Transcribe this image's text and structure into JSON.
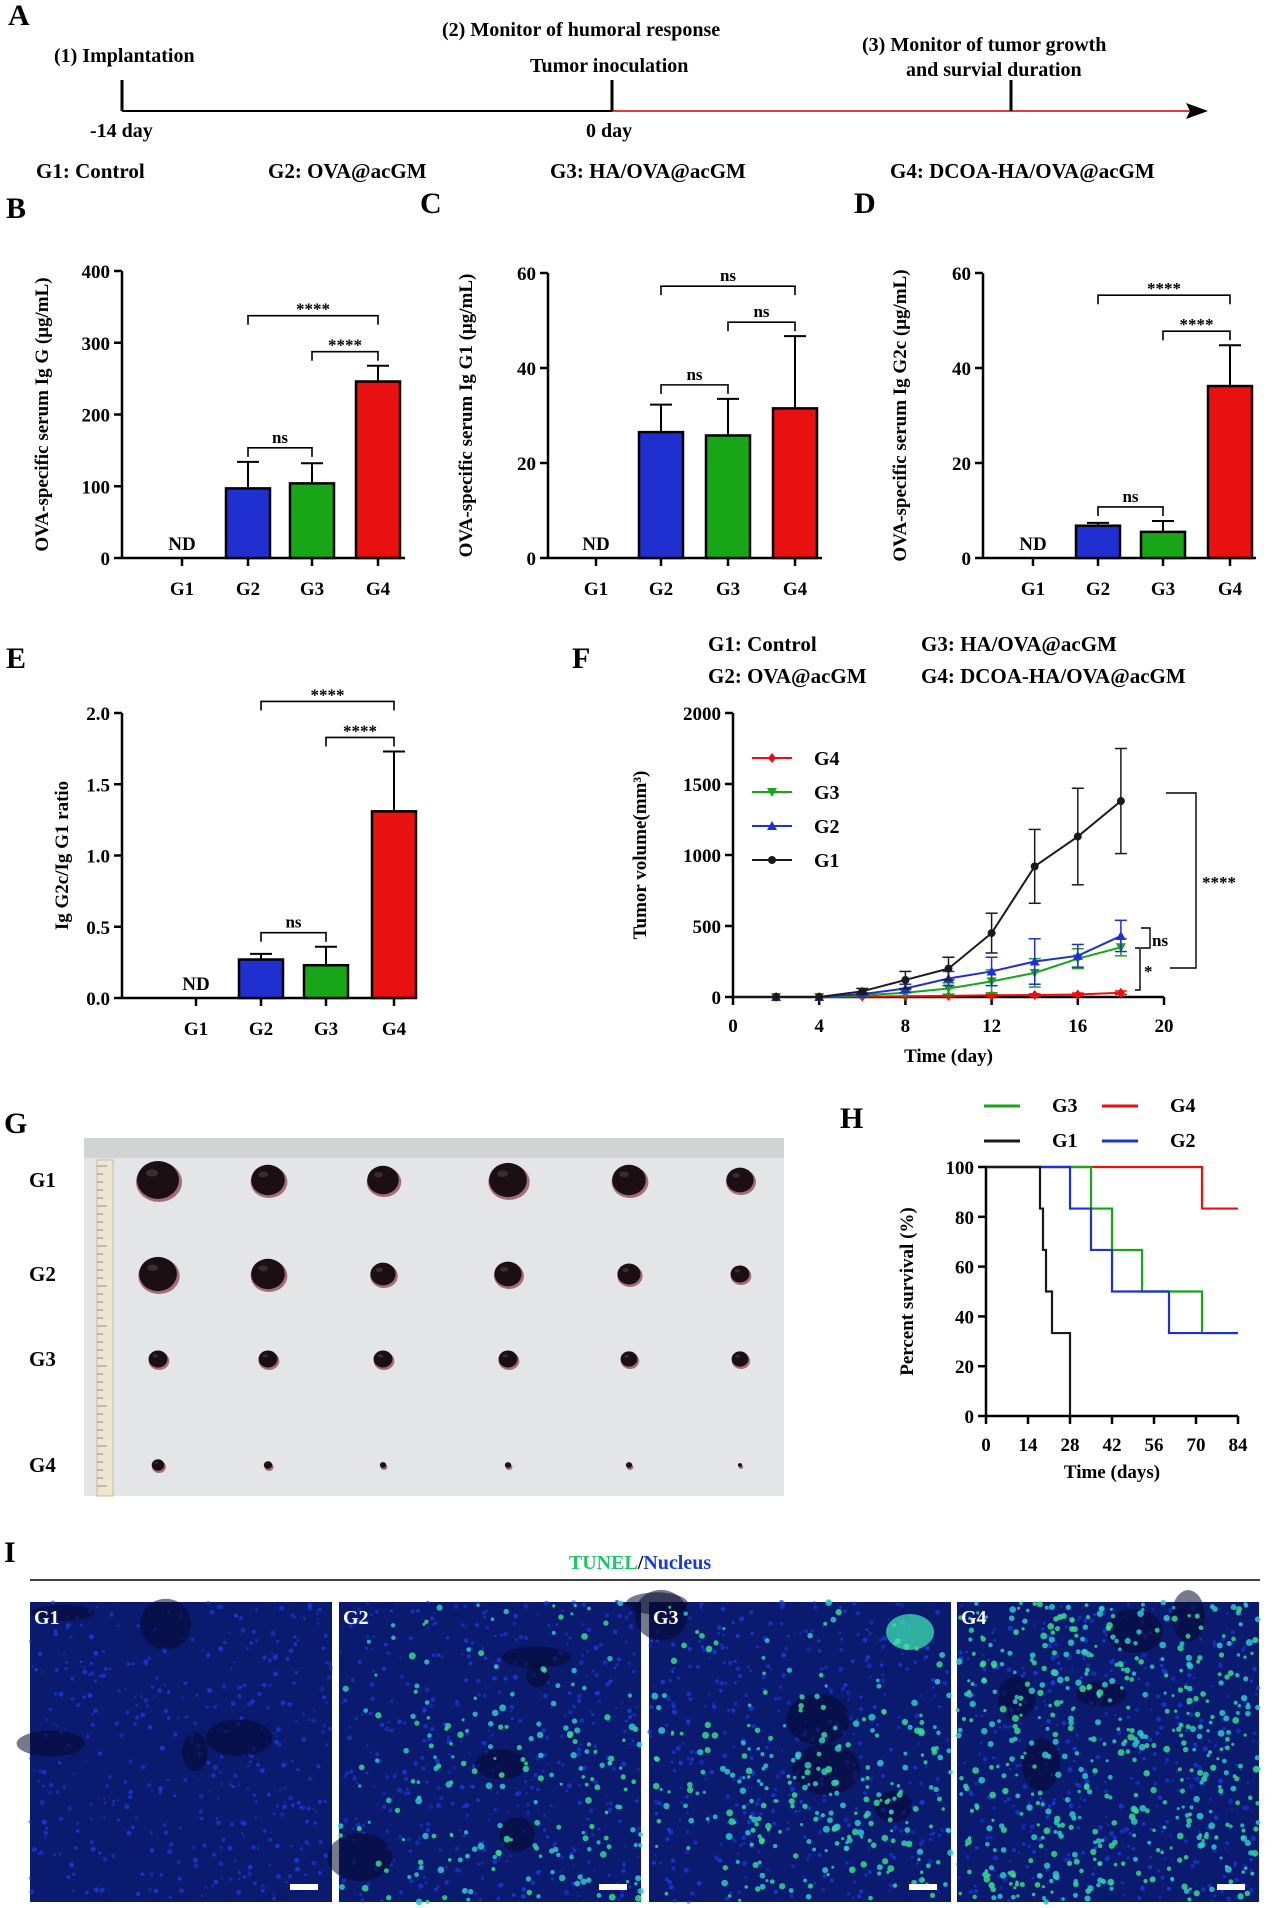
{
  "colors": {
    "G1": "#1a1a1a",
    "G2": "#1f2fd0",
    "G3": "#18a518",
    "G4": "#e81010",
    "tunel": "#22c46a",
    "nucleus": "#1a3adf",
    "timeline_red": "#e33b3b"
  },
  "panel_labels": {
    "A": "A",
    "B": "B",
    "C": "C",
    "D": "D",
    "E": "E",
    "F": "F",
    "G": "G",
    "H": "H",
    "I": "I"
  },
  "timeline": {
    "step1": "(1) Implantation",
    "step2": "(2) Monitor of humoral response",
    "step2b": "Tumor inoculation",
    "step3_line1": "(3) Monitor of tumor growth",
    "step3_line2": "and survial duration",
    "t1": "-14 day",
    "t2": "0 day",
    "groups": [
      "G1: Control",
      "G2: OVA@acGM",
      "G3: HA/OVA@acGM",
      "G4: DCOA-HA/OVA@acGM"
    ]
  },
  "chart_data": [
    {
      "id": "B",
      "type": "bar",
      "categories": [
        "G1",
        "G2",
        "G3",
        "G4"
      ],
      "values": [
        0,
        97,
        104,
        246
      ],
      "errors": [
        0,
        37,
        28,
        22
      ],
      "ylim": [
        0,
        400
      ],
      "yticks": [
        "0",
        "100",
        "200",
        "300",
        "400"
      ],
      "ylabel": "OVA-specific serum Ig G (μg/mL)",
      "nd_label": "ND",
      "significance": [
        {
          "from": "G2",
          "to": "G4",
          "label": "****"
        },
        {
          "from": "G3",
          "to": "G4",
          "label": "****"
        },
        {
          "from": "G2",
          "to": "G3",
          "label": "ns"
        }
      ]
    },
    {
      "id": "C",
      "type": "bar",
      "categories": [
        "G1",
        "G2",
        "G3",
        "G4"
      ],
      "values": [
        0,
        26.5,
        25.8,
        31.5
      ],
      "errors": [
        0,
        5.8,
        7.7,
        15.2
      ],
      "ylim": [
        0,
        60
      ],
      "yticks": [
        "0",
        "20",
        "40",
        "60"
      ],
      "ylabel": "OVA-specific serum Ig G1 (μg/mL)",
      "nd_label": "ND",
      "significance": [
        {
          "from": "G2",
          "to": "G4",
          "label": "ns"
        },
        {
          "from": "G3",
          "to": "G4",
          "label": "ns"
        },
        {
          "from": "G2",
          "to": "G3",
          "label": "ns"
        }
      ]
    },
    {
      "id": "D",
      "type": "bar",
      "categories": [
        "G1",
        "G2",
        "G3",
        "G4"
      ],
      "values": [
        0,
        6.8,
        5.5,
        36.2
      ],
      "errors": [
        0,
        0.6,
        2.3,
        8.6
      ],
      "ylim": [
        0,
        60
      ],
      "yticks": [
        "0",
        "20",
        "40",
        "60"
      ],
      "ylabel": "OVA-specific serum Ig G2c (μg/mL)",
      "nd_label": "ND",
      "significance": [
        {
          "from": "G2",
          "to": "G4",
          "label": "****"
        },
        {
          "from": "G3",
          "to": "G4",
          "label": "****"
        },
        {
          "from": "G2",
          "to": "G3",
          "label": "ns"
        }
      ]
    },
    {
      "id": "E",
      "type": "bar",
      "categories": [
        "G1",
        "G2",
        "G3",
        "G4"
      ],
      "values": [
        0,
        0.27,
        0.23,
        1.31
      ],
      "errors": [
        0,
        0.04,
        0.13,
        0.42
      ],
      "ylim": [
        0,
        2.0
      ],
      "yticks": [
        "0.0",
        "0.5",
        "1.0",
        "1.5",
        "2.0"
      ],
      "ylabel": "Ig G2c/Ig G1 ratio",
      "nd_label": "ND",
      "significance": [
        {
          "from": "G2",
          "to": "G4",
          "label": "****"
        },
        {
          "from": "G3",
          "to": "G4",
          "label": "****"
        },
        {
          "from": "G2",
          "to": "G3",
          "label": "ns"
        }
      ]
    },
    {
      "id": "F",
      "type": "line",
      "title_groups": [
        "G1: Control",
        "G2: OVA@acGM",
        "G3: HA/OVA@acGM",
        "G4: DCOA-HA/OVA@acGM"
      ],
      "xlabel": "Time (day)",
      "ylabel": "Tumor volume(mm³)",
      "xlim": [
        0,
        20
      ],
      "ylim": [
        0,
        2000
      ],
      "xticks": [
        "0",
        "4",
        "8",
        "12",
        "16",
        "20"
      ],
      "yticks": [
        "0",
        "500",
        "1000",
        "1500",
        "2000"
      ],
      "x": [
        2,
        4,
        6,
        8,
        10,
        12,
        14,
        16,
        18
      ],
      "series": [
        {
          "name": "G4",
          "values": [
            0,
            0,
            3,
            5,
            8,
            12,
            14,
            18,
            30
          ],
          "errors": [
            0,
            0,
            2,
            3,
            4,
            6,
            8,
            10,
            12
          ]
        },
        {
          "name": "G3",
          "values": [
            0,
            0,
            12,
            30,
            60,
            110,
            170,
            270,
            350
          ],
          "errors": [
            0,
            0,
            8,
            20,
            40,
            80,
            100,
            70,
            60
          ]
        },
        {
          "name": "G2",
          "values": [
            0,
            0,
            20,
            60,
            130,
            180,
            250,
            290,
            430
          ],
          "errors": [
            0,
            0,
            10,
            30,
            50,
            100,
            160,
            80,
            110
          ]
        },
        {
          "name": "G1",
          "values": [
            0,
            0,
            40,
            120,
            200,
            450,
            920,
            1130,
            1380
          ],
          "errors": [
            0,
            0,
            20,
            60,
            80,
            140,
            260,
            340,
            370
          ]
        }
      ],
      "legend_order": [
        "G4",
        "G3",
        "G2",
        "G1"
      ],
      "significance": [
        {
          "between": "G1-G4",
          "label": "****"
        },
        {
          "between": "G2-G3",
          "label": "ns"
        },
        {
          "between": "G3-G4",
          "label": "*"
        }
      ]
    },
    {
      "id": "H",
      "type": "line",
      "subtype": "kaplan-meier",
      "xlabel": "Time (days)",
      "ylabel": "Percent survival (%)",
      "xlim": [
        0,
        84
      ],
      "ylim": [
        0,
        100
      ],
      "xticks": [
        "0",
        "14",
        "28",
        "42",
        "56",
        "70",
        "84"
      ],
      "yticks": [
        "0",
        "20",
        "40",
        "60",
        "80",
        "100"
      ],
      "series": [
        {
          "name": "G1",
          "steps": [
            [
              0,
              100
            ],
            [
              18,
              100
            ],
            [
              18,
              83.3
            ],
            [
              19,
              83.3
            ],
            [
              19,
              66.7
            ],
            [
              20,
              66.7
            ],
            [
              20,
              50
            ],
            [
              22,
              50
            ],
            [
              22,
              33.3
            ],
            [
              28,
              33.3
            ],
            [
              28,
              0
            ]
          ]
        },
        {
          "name": "G2",
          "steps": [
            [
              0,
              100
            ],
            [
              28,
              100
            ],
            [
              28,
              83.3
            ],
            [
              35,
              83.3
            ],
            [
              35,
              66.7
            ],
            [
              42,
              66.7
            ],
            [
              42,
              50
            ],
            [
              61,
              50
            ],
            [
              61,
              33.3
            ],
            [
              84,
              33.3
            ]
          ]
        },
        {
          "name": "G3",
          "steps": [
            [
              0,
              100
            ],
            [
              35,
              100
            ],
            [
              35,
              83.3
            ],
            [
              42,
              83.3
            ],
            [
              42,
              66.7
            ],
            [
              52,
              66.7
            ],
            [
              52,
              50
            ],
            [
              72,
              50
            ],
            [
              72,
              33.3
            ],
            [
              84,
              33.3
            ]
          ]
        },
        {
          "name": "G4",
          "steps": [
            [
              0,
              100
            ],
            [
              72,
              100
            ],
            [
              72,
              83.3
            ],
            [
              84,
              83.3
            ]
          ]
        }
      ],
      "legend": [
        "G3",
        "G4",
        "G1",
        "G2"
      ]
    }
  ],
  "photo": {
    "rows": [
      "G1",
      "G2",
      "G3",
      "G4"
    ],
    "sizes": [
      [
        20,
        16,
        15,
        18,
        16,
        13
      ],
      [
        18,
        16,
        12,
        13,
        11,
        9
      ],
      [
        9,
        9,
        9,
        9,
        8,
        8
      ],
      [
        6,
        4,
        3,
        3,
        3,
        2
      ]
    ]
  },
  "tunel": {
    "title_tunel": "TUNEL",
    "title_sep": "/",
    "title_nucleus": "Nucleus",
    "panels": [
      "G1",
      "G2",
      "G3",
      "G4"
    ],
    "densities": [
      0,
      200,
      280,
      520
    ]
  }
}
